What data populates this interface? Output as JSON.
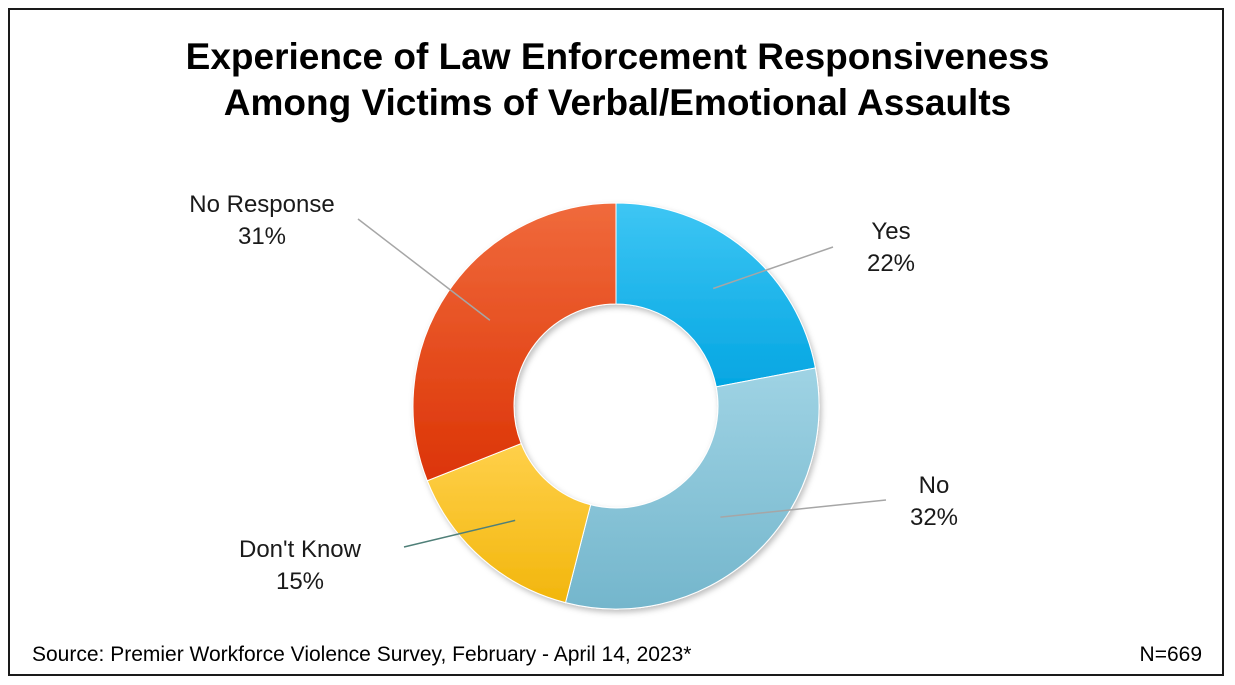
{
  "title_lines": [
    "Experience of Law Enforcement Responsiveness",
    "Among Victims of Verbal/Emotional Assaults"
  ],
  "source": "Source: Premier Workforce Violence Survey, February - April 14, 2023*",
  "n_label": "N=669",
  "chart_data": {
    "type": "pie",
    "donut": true,
    "title": "Experience of Law Enforcement Responsiveness Among Victims of Verbal/Emotional Assaults",
    "categories": [
      "Yes",
      "No",
      "Don't Know",
      "No Response"
    ],
    "values": [
      22,
      32,
      15,
      31
    ],
    "value_labels": [
      "22%",
      "32%",
      "15%",
      "31%"
    ],
    "colors": [
      "#11b4ec",
      "#8ac6d8",
      "#fcc424",
      "#e54010"
    ],
    "legend": "none"
  }
}
